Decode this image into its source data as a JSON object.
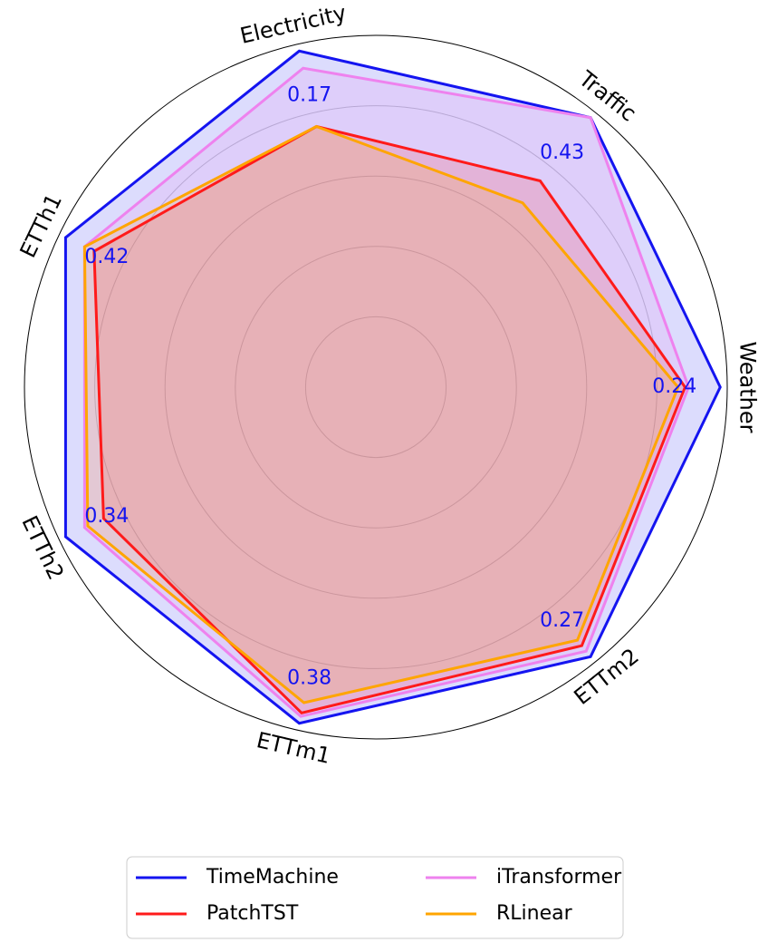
{
  "chart_data": {
    "type": "radar",
    "categories": [
      "Weather",
      "Traffic",
      "Electricity",
      "ETTh1",
      "ETTh2",
      "ETTm1",
      "ETTm2"
    ],
    "axis_value_labels": [
      "0.24",
      "0.43",
      "0.17",
      "0.42",
      "0.34",
      "0.38",
      "0.27"
    ],
    "ylim": [
      0,
      1
    ],
    "grid": true,
    "series": [
      {
        "name": "TimeMachine",
        "color": "#1414f0",
        "values": [
          0.98,
          0.98,
          0.98,
          0.98,
          0.98,
          0.98,
          0.98
        ]
      },
      {
        "name": "iTransformer",
        "color": "#ee82ee",
        "values": [
          0.89,
          0.98,
          0.93,
          0.92,
          0.92,
          0.96,
          0.96
        ]
      },
      {
        "name": "PatchTST",
        "color": "#ff1a1a",
        "values": [
          0.88,
          0.75,
          0.76,
          0.89,
          0.86,
          0.95,
          0.94
        ]
      },
      {
        "name": "RLinear",
        "color": "#ffa500",
        "values": [
          0.86,
          0.67,
          0.76,
          0.92,
          0.91,
          0.92,
          0.92
        ]
      }
    ],
    "legend_position": "lower center"
  }
}
